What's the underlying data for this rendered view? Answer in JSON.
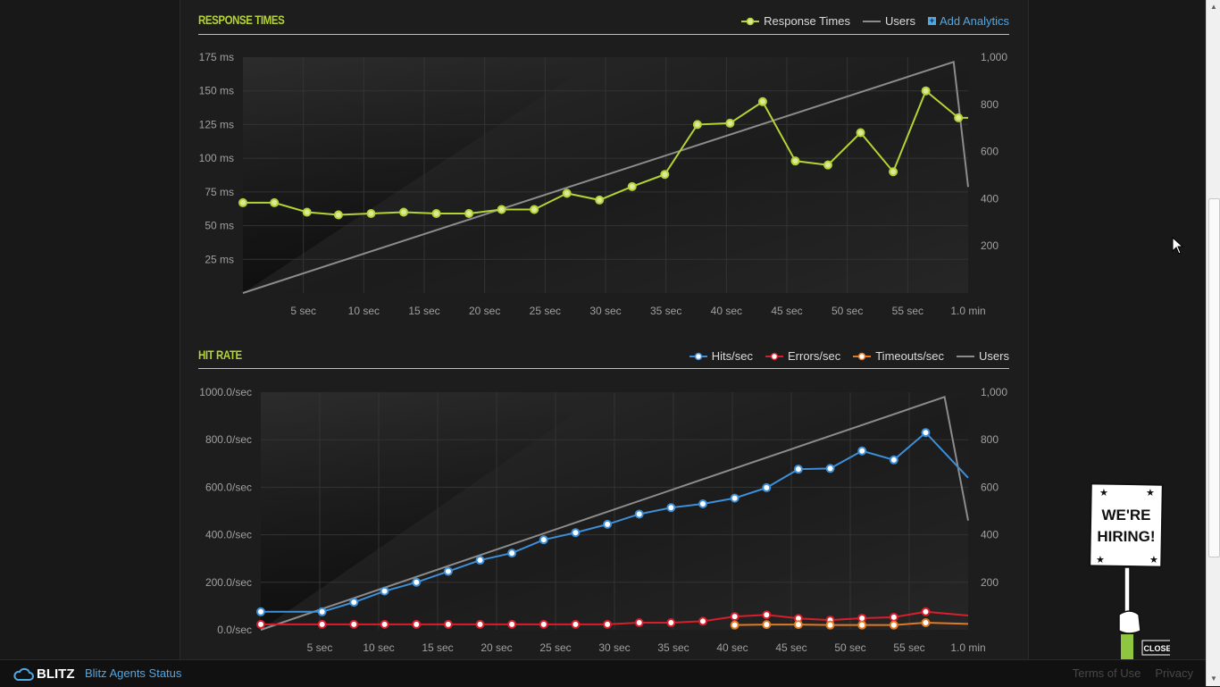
{
  "sections": {
    "response_times": {
      "title": "RESPONSE TIMES",
      "legend": {
        "series1": "Response Times",
        "series2": "Users",
        "add": "Add Analytics"
      }
    },
    "hit_rate": {
      "title": "HIT RATE",
      "legend": {
        "hits": "Hits/sec",
        "errors": "Errors/sec",
        "timeouts": "Timeouts/sec",
        "users": "Users"
      }
    }
  },
  "colors": {
    "response": "#b4d335",
    "users": "#8c8c8c",
    "hits": "#3d8fd8",
    "errors": "#d81e2c",
    "timeouts": "#e07a22",
    "title": "#b4d335",
    "link": "#4fa7e3"
  },
  "chart_data": [
    {
      "type": "line",
      "title": "RESPONSE TIMES",
      "x_ticks": [
        "5 sec",
        "10 sec",
        "15 sec",
        "20 sec",
        "25 sec",
        "30 sec",
        "35 sec",
        "40 sec",
        "45 sec",
        "50 sec",
        "55 sec",
        "1.0 min"
      ],
      "x_tick_values": [
        5,
        10,
        15,
        20,
        25,
        30,
        35,
        40,
        45,
        50,
        55,
        60
      ],
      "xlim": [
        0,
        60
      ],
      "y_ticks": [
        "25 ms",
        "50 ms",
        "75 ms",
        "100 ms",
        "125 ms",
        "150 ms",
        "175 ms"
      ],
      "y_tick_values": [
        25,
        50,
        75,
        100,
        125,
        150,
        175
      ],
      "ylim": [
        0,
        175
      ],
      "y2_ticks": [
        "200",
        "400",
        "600",
        "800",
        "1,000"
      ],
      "y2_tick_values": [
        200,
        400,
        600,
        800,
        1000
      ],
      "y2lim": [
        0,
        1000
      ],
      "grid": true,
      "legend_position": "top-right",
      "series": [
        {
          "name": "Response Times",
          "axis": "left",
          "color": "#b4d335",
          "markers": true,
          "x": [
            0,
            2.6,
            5.3,
            7.9,
            10.6,
            13.3,
            16.0,
            18.7,
            21.4,
            24.1,
            26.8,
            29.5,
            32.2,
            34.9,
            37.6,
            40.3,
            43.0,
            45.7,
            48.4,
            51.1,
            53.8,
            56.5,
            59.2,
            60
          ],
          "y": [
            67,
            67,
            60,
            58,
            59,
            60,
            59,
            59,
            62,
            62,
            74,
            69,
            79,
            88,
            125,
            126,
            142,
            98,
            95,
            119,
            90,
            150,
            130,
            130
          ]
        },
        {
          "name": "Users",
          "axis": "right",
          "color": "#8c8c8c",
          "markers": false,
          "x": [
            0,
            58.8,
            60
          ],
          "y": [
            0,
            980,
            450
          ]
        }
      ]
    },
    {
      "type": "line",
      "title": "HIT RATE",
      "x_ticks": [
        "5 sec",
        "10 sec",
        "15 sec",
        "20 sec",
        "25 sec",
        "30 sec",
        "35 sec",
        "40 sec",
        "45 sec",
        "50 sec",
        "55 sec",
        "1.0 min"
      ],
      "x_tick_values": [
        5,
        10,
        15,
        20,
        25,
        30,
        35,
        40,
        45,
        50,
        55,
        60
      ],
      "xlim": [
        0,
        60
      ],
      "y_ticks": [
        "0.0/sec",
        "200.0/sec",
        "400.0/sec",
        "600.0/sec",
        "800.0/sec",
        "1000.0/sec"
      ],
      "y_tick_values": [
        0,
        200,
        400,
        600,
        800,
        1000
      ],
      "ylim": [
        0,
        1000
      ],
      "y2_ticks": [
        "200",
        "400",
        "600",
        "800",
        "1,000"
      ],
      "y2_tick_values": [
        200,
        400,
        600,
        800,
        1000
      ],
      "y2lim": [
        0,
        1000
      ],
      "grid": true,
      "legend_position": "top-right",
      "series": [
        {
          "name": "Hits/sec",
          "axis": "left",
          "color": "#3d8fd8",
          "markers": true,
          "x": [
            0,
            5.2,
            7.9,
            10.5,
            13.2,
            15.9,
            18.6,
            21.3,
            24.0,
            26.7,
            29.4,
            32.1,
            34.8,
            37.5,
            40.2,
            42.9,
            45.6,
            48.3,
            51.0,
            53.7,
            56.4,
            60
          ],
          "y": [
            76,
            76,
            116,
            163,
            200,
            246,
            293,
            323,
            379,
            409,
            444,
            487,
            514,
            530,
            554,
            598,
            676,
            679,
            753,
            715,
            830,
            640
          ]
        },
        {
          "name": "Errors/sec",
          "axis": "left",
          "color": "#d81e2c",
          "markers": true,
          "x": [
            0,
            5.2,
            7.9,
            10.5,
            13.2,
            15.9,
            18.6,
            21.3,
            24.0,
            26.7,
            29.4,
            32.1,
            34.8,
            37.5,
            40.2,
            42.9,
            45.6,
            48.3,
            51.0,
            53.7,
            56.4,
            60
          ],
          "y": [
            23,
            23,
            23,
            23,
            23,
            23,
            23,
            23,
            23,
            23,
            23,
            30,
            30,
            36,
            56,
            63,
            48,
            41,
            49,
            53,
            76,
            60
          ]
        },
        {
          "name": "Timeouts/sec",
          "axis": "left",
          "color": "#e07a22",
          "markers": true,
          "x": [
            40.2,
            42.9,
            45.6,
            48.3,
            51.0,
            53.7,
            56.4,
            60
          ],
          "y": [
            20,
            22,
            22,
            20,
            20,
            20,
            30,
            25
          ]
        },
        {
          "name": "Users",
          "axis": "right",
          "color": "#8c8c8c",
          "markers": false,
          "x": [
            0,
            58.0,
            60
          ],
          "y": [
            0,
            980,
            460
          ]
        }
      ]
    }
  ],
  "footer": {
    "logo": "BLITZ",
    "status_link": "Blitz Agents Status",
    "terms": "Terms of Use",
    "privacy": "Privacy"
  },
  "hiring": {
    "line1": "WE'RE",
    "line2": "HIRING!",
    "close": "CLOSE"
  }
}
